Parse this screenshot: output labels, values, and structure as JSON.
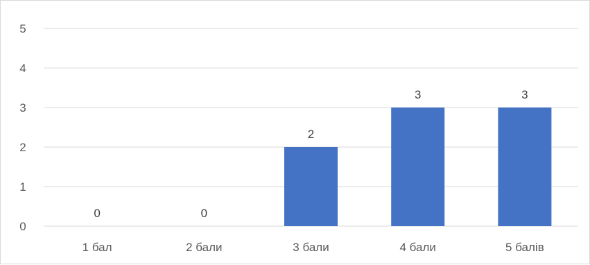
{
  "chart_data": {
    "type": "bar",
    "categories": [
      "1 бал",
      "2 бали",
      "3 бали",
      "4 бали",
      "5 балів"
    ],
    "values": [
      0,
      0,
      2,
      3,
      3
    ],
    "ylim": [
      0,
      5
    ],
    "yticks": [
      "0",
      "1",
      "2",
      "3",
      "4",
      "5"
    ],
    "grid": true,
    "data_labels": true,
    "bar_color": "#4472c4",
    "grid_color": "#d9d9d9"
  }
}
